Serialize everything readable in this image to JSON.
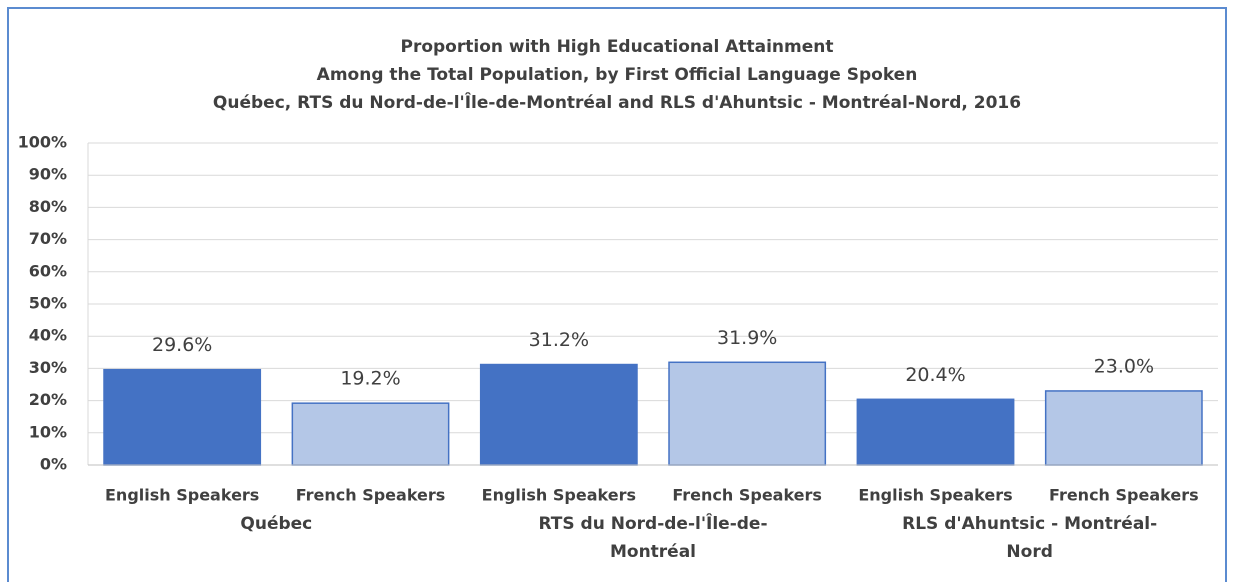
{
  "chart_data": {
    "type": "bar",
    "title": [
      "Proportion with High Educational Attainment",
      "Among the Total Population, by First Official Language Spoken",
      "Québec, RTS du Nord-de-l'Île-de-Montréal and RLS d'Ahuntsic - Montréal-Nord, 2016"
    ],
    "categories": [
      "Québec",
      "RTS du Nord-de-l'Île-de-Montréal",
      "RLS d'Ahuntsic - Montréal-Nord"
    ],
    "series": [
      {
        "name": "English Speakers",
        "color": "#4472c4",
        "values": [
          29.6,
          31.2,
          20.4
        ],
        "value_labels": [
          "29.6%",
          "31.2%",
          "20.4%"
        ]
      },
      {
        "name": "French Speakers",
        "color": "#b4c7e7",
        "values": [
          19.2,
          31.9,
          23.0
        ],
        "value_labels": [
          "19.2%",
          "31.9%",
          "23.0%"
        ]
      }
    ],
    "ylim": [
      0,
      100
    ],
    "yticks": [
      {
        "value": 0,
        "label": "0%"
      },
      {
        "value": 10,
        "label": "10%"
      },
      {
        "value": 20,
        "label": "20%"
      },
      {
        "value": 30,
        "label": "30%"
      },
      {
        "value": 40,
        "label": "40%"
      },
      {
        "value": 50,
        "label": "50%"
      },
      {
        "value": 60,
        "label": "60%"
      },
      {
        "value": 70,
        "label": "70%"
      },
      {
        "value": 80,
        "label": "80%"
      },
      {
        "value": 90,
        "label": "90%"
      },
      {
        "value": 100,
        "label": "100%"
      }
    ],
    "grid": true
  }
}
